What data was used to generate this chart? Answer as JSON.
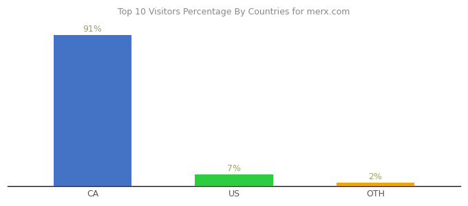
{
  "categories": [
    "CA",
    "US",
    "OTH"
  ],
  "values": [
    91,
    7,
    2
  ],
  "bar_colors": [
    "#4472c4",
    "#2ecc40",
    "#f0a500"
  ],
  "label_color": "#a0a060",
  "bar_label_template": [
    "91%",
    "7%",
    "2%"
  ],
  "title": "Top 10 Visitors Percentage By Countries for merx.com",
  "background_color": "#ffffff",
  "ylim": [
    0,
    100
  ],
  "bar_width": 0.55,
  "label_fontsize": 9,
  "tick_fontsize": 9,
  "title_fontsize": 9,
  "title_color": "#888888"
}
